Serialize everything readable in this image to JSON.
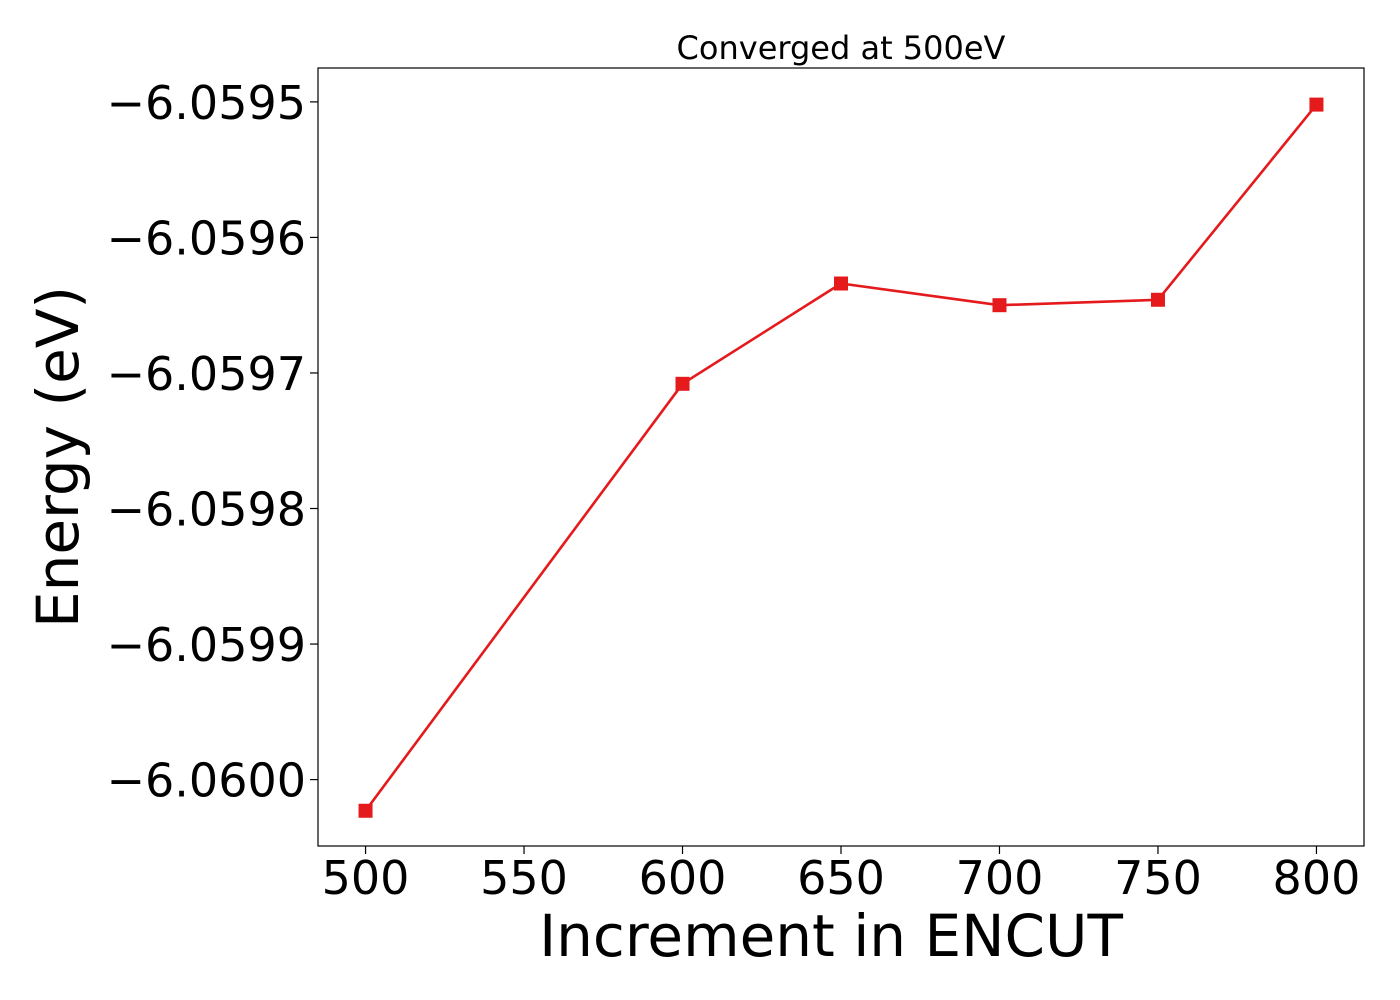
{
  "chart_data": {
    "type": "line",
    "title": "Converged at 500eV",
    "xlabel": "Increment in ENCUT",
    "ylabel": "Energy (eV)",
    "x": [
      500,
      600,
      650,
      700,
      750,
      800
    ],
    "series": [
      {
        "values": [
          -6.060023,
          -6.059708,
          -6.059634,
          -6.05965,
          -6.059646,
          -6.059502
        ],
        "color": "#e41a1c",
        "marker": "square"
      }
    ],
    "xlim": [
      485,
      815
    ],
    "ylim": [
      -6.060049,
      -6.059475
    ],
    "x_ticks": [
      500,
      550,
      600,
      650,
      700,
      750,
      800
    ],
    "x_tick_labels": [
      "500",
      "550",
      "600",
      "650",
      "700",
      "750",
      "800"
    ],
    "y_ticks": [
      -6.06,
      -6.0599,
      -6.0598,
      -6.0597,
      -6.0596,
      -6.0595
    ],
    "y_tick_labels": [
      "−6.0600",
      "−6.0599",
      "−6.0598",
      "−6.0597",
      "−6.0596",
      "−6.0595"
    ],
    "grid": false,
    "legend": "none"
  }
}
